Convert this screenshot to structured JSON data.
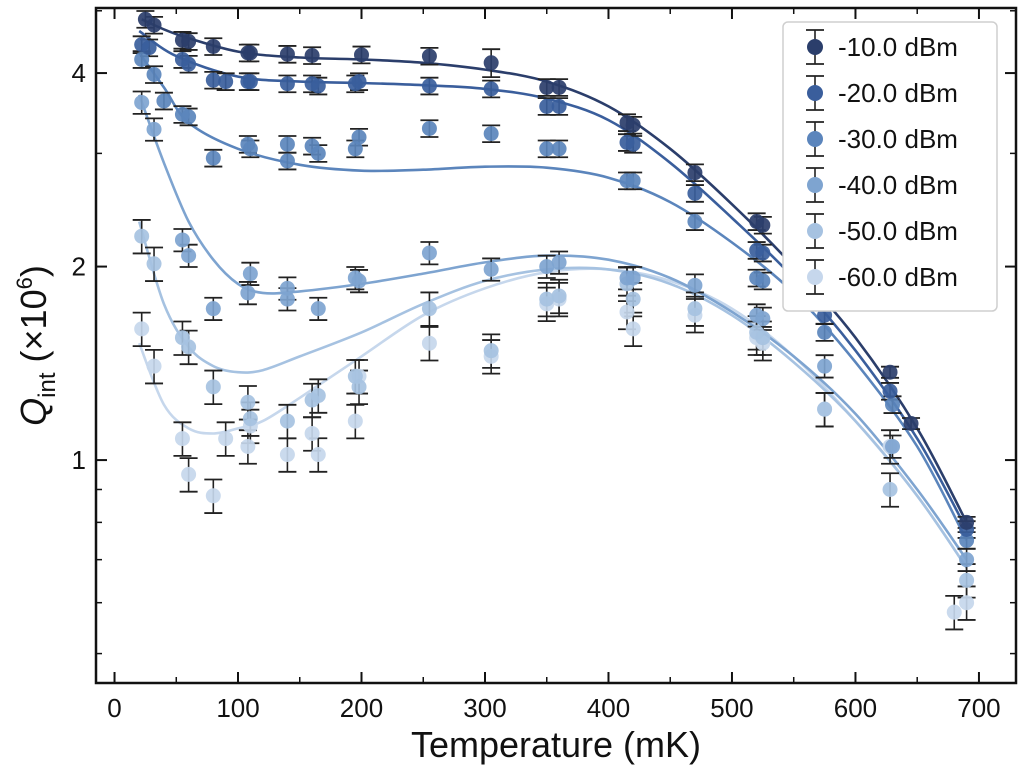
{
  "chart_data": {
    "type": "scatter",
    "xlabel": "Temperature (mK)",
    "ylabel_main": "Q",
    "ylabel_sub": "int",
    "ylabel_unit_pre": " (×10",
    "ylabel_unit_exp": "6",
    "ylabel_unit_post": ")",
    "xlim": [
      -15,
      730
    ],
    "ylim": [
      0.45,
      5.05
    ],
    "x_ticks": [
      0,
      100,
      200,
      300,
      400,
      500,
      600,
      700
    ],
    "x_tick_labels": [
      "0",
      "100",
      "200",
      "300",
      "400",
      "500",
      "600",
      "700"
    ],
    "y_ticks": [
      1,
      2,
      4
    ],
    "y_tick_labels": [
      "1",
      "2",
      "4"
    ],
    "y_scale": "log",
    "grid": false,
    "legend_position": "top-right",
    "series": [
      {
        "name": "-10.0 dBm",
        "color": "#2b3e6b",
        "x": [
          25,
          32,
          55,
          60,
          80,
          108,
          110,
          140,
          160,
          200,
          255,
          305,
          350,
          360,
          415,
          420,
          470,
          520,
          525,
          575,
          628,
          645,
          690
        ],
        "y": [
          4.85,
          4.75,
          4.5,
          4.48,
          4.4,
          4.3,
          4.3,
          4.28,
          4.26,
          4.27,
          4.25,
          4.15,
          3.8,
          3.8,
          3.35,
          3.32,
          2.8,
          2.35,
          2.32,
          1.78,
          1.37,
          1.14,
          0.8
        ],
        "err": [
          0.03,
          0.03,
          0.03,
          0.03,
          0.03,
          0.03,
          0.03,
          0.03,
          0.03,
          0.03,
          0.03,
          0.05,
          0.03,
          0.03,
          0.03,
          0.03,
          0.03,
          0.03,
          0.03,
          0.02,
          0.02,
          0.02,
          0.02
        ],
        "fit_x": [
          22,
          50,
          100,
          150,
          200,
          250,
          300,
          350,
          400,
          450,
          500,
          550,
          600,
          650,
          690
        ],
        "fit_y": [
          4.85,
          4.6,
          4.32,
          4.23,
          4.2,
          4.15,
          4.05,
          3.88,
          3.55,
          3.05,
          2.5,
          2.0,
          1.55,
          1.12,
          0.8
        ]
      },
      {
        "name": "-20.0 dBm",
        "color": "#3a5e9c",
        "x": [
          22,
          28,
          55,
          60,
          80,
          90,
          108,
          110,
          140,
          160,
          165,
          195,
          198,
          255,
          305,
          350,
          360,
          415,
          420,
          470,
          520,
          525,
          575,
          628,
          690
        ],
        "y": [
          4.43,
          4.38,
          4.2,
          4.13,
          3.9,
          3.88,
          3.88,
          3.88,
          3.85,
          3.85,
          3.82,
          3.85,
          3.88,
          3.82,
          3.78,
          3.55,
          3.55,
          3.12,
          3.1,
          2.6,
          2.12,
          2.1,
          1.68,
          1.28,
          0.78
        ],
        "err": [
          0.03,
          0.03,
          0.03,
          0.03,
          0.03,
          0.03,
          0.03,
          0.03,
          0.03,
          0.03,
          0.03,
          0.03,
          0.03,
          0.03,
          0.03,
          0.03,
          0.03,
          0.03,
          0.03,
          0.03,
          0.03,
          0.03,
          0.03,
          0.03,
          0.03
        ],
        "fit_x": [
          20,
          50,
          100,
          150,
          200,
          250,
          300,
          350,
          400,
          450,
          500,
          550,
          600,
          650,
          690
        ],
        "fit_y": [
          4.65,
          4.25,
          3.95,
          3.88,
          3.86,
          3.83,
          3.78,
          3.65,
          3.38,
          2.9,
          2.38,
          1.92,
          1.48,
          1.08,
          0.78
        ]
      },
      {
        "name": "-30.0 dBm",
        "color": "#5b85bc",
        "x": [
          22,
          32,
          40,
          55,
          60,
          80,
          108,
          110,
          140,
          140,
          160,
          165,
          195,
          198,
          255,
          305,
          350,
          360,
          415,
          420,
          470,
          520,
          525,
          575,
          630,
          690
        ],
        "y": [
          4.2,
          3.98,
          3.62,
          3.45,
          3.42,
          2.95,
          3.1,
          3.05,
          3.1,
          2.92,
          3.08,
          3.0,
          3.05,
          3.18,
          3.28,
          3.22,
          3.05,
          3.05,
          2.72,
          2.72,
          2.35,
          1.92,
          1.9,
          1.58,
          1.22,
          0.75
        ],
        "err": [
          0.03,
          0.03,
          0.03,
          0.03,
          0.03,
          0.03,
          0.03,
          0.03,
          0.03,
          0.03,
          0.03,
          0.03,
          0.03,
          0.03,
          0.03,
          0.03,
          0.03,
          0.03,
          0.03,
          0.03,
          0.03,
          0.03,
          0.03,
          0.03,
          0.03,
          0.03
        ],
        "fit_x": [
          20,
          40,
          60,
          100,
          150,
          200,
          250,
          300,
          350,
          400,
          450,
          500,
          550,
          600,
          650,
          690
        ],
        "fit_y": [
          4.3,
          3.8,
          3.35,
          3.05,
          2.88,
          2.82,
          2.83,
          2.86,
          2.85,
          2.75,
          2.52,
          2.18,
          1.82,
          1.42,
          1.05,
          0.75
        ]
      },
      {
        "name": "-40.0 dBm",
        "color": "#7ea4d0",
        "x": [
          22,
          32,
          55,
          60,
          80,
          108,
          110,
          140,
          140,
          165,
          195,
          198,
          255,
          305,
          350,
          360,
          415,
          420,
          470,
          520,
          525,
          575,
          630,
          690
        ],
        "y": [
          3.6,
          3.27,
          2.2,
          2.08,
          1.72,
          1.82,
          1.95,
          1.85,
          1.78,
          1.72,
          1.92,
          1.9,
          2.1,
          1.98,
          2.0,
          2.03,
          1.92,
          1.92,
          1.87,
          1.68,
          1.66,
          1.4,
          1.05,
          0.7
        ],
        "err": [
          0.04,
          0.04,
          0.04,
          0.04,
          0.04,
          0.04,
          0.04,
          0.04,
          0.04,
          0.04,
          0.04,
          0.04,
          0.04,
          0.04,
          0.04,
          0.04,
          0.04,
          0.04,
          0.04,
          0.04,
          0.04,
          0.04,
          0.04,
          0.04
        ],
        "fit_x": [
          20,
          40,
          60,
          80,
          100,
          120,
          150,
          200,
          250,
          300,
          350,
          400,
          450,
          500,
          550,
          600,
          650,
          690
        ],
        "fit_y": [
          3.7,
          2.9,
          2.35,
          2.05,
          1.88,
          1.82,
          1.83,
          1.88,
          1.95,
          2.03,
          2.08,
          2.05,
          1.92,
          1.7,
          1.45,
          1.18,
          0.9,
          0.7
        ]
      },
      {
        "name": "-50.0 dBm",
        "color": "#a6c2e1",
        "x": [
          22,
          32,
          55,
          60,
          80,
          108,
          110,
          140,
          160,
          165,
          195,
          198,
          255,
          305,
          350,
          360,
          415,
          420,
          470,
          520,
          525,
          575,
          628,
          690
        ],
        "y": [
          2.23,
          2.02,
          1.55,
          1.5,
          1.3,
          1.23,
          1.16,
          1.15,
          1.24,
          1.26,
          1.35,
          1.3,
          1.72,
          1.48,
          1.78,
          1.8,
          1.88,
          1.78,
          1.72,
          1.58,
          1.55,
          1.2,
          0.9,
          0.65
        ],
        "err": [
          0.06,
          0.06,
          0.06,
          0.06,
          0.06,
          0.06,
          0.06,
          0.06,
          0.06,
          0.06,
          0.06,
          0.06,
          0.06,
          0.06,
          0.06,
          0.06,
          0.06,
          0.06,
          0.06,
          0.06,
          0.06,
          0.06,
          0.06,
          0.06
        ],
        "fit_x": [
          20,
          40,
          60,
          80,
          100,
          120,
          150,
          200,
          250,
          300,
          350,
          400,
          450,
          500,
          550,
          600,
          650,
          690
        ],
        "fit_y": [
          2.35,
          1.75,
          1.5,
          1.4,
          1.37,
          1.38,
          1.45,
          1.58,
          1.75,
          1.9,
          1.98,
          1.98,
          1.88,
          1.68,
          1.42,
          1.15,
          0.88,
          0.68
        ]
      },
      {
        "name": "-60.0 dBm",
        "color": "#c6d7ec",
        "x": [
          22,
          32,
          55,
          60,
          80,
          90,
          108,
          110,
          140,
          160,
          165,
          195,
          198,
          255,
          305,
          350,
          360,
          415,
          420,
          470,
          520,
          525,
          575,
          628,
          680,
          690
        ],
        "y": [
          1.6,
          1.4,
          1.08,
          0.95,
          0.88,
          1.08,
          1.05,
          1.13,
          1.02,
          1.1,
          1.02,
          1.15,
          1.35,
          1.52,
          1.45,
          1.75,
          1.78,
          1.7,
          1.6,
          1.68,
          1.55,
          1.52,
          1.2,
          1.05,
          0.58,
          0.6
        ],
        "err": [
          0.06,
          0.06,
          0.06,
          0.06,
          0.06,
          0.06,
          0.06,
          0.06,
          0.06,
          0.06,
          0.06,
          0.06,
          0.06,
          0.06,
          0.06,
          0.06,
          0.06,
          0.06,
          0.06,
          0.06,
          0.06,
          0.06,
          0.06,
          0.06,
          0.06,
          0.06
        ],
        "fit_x": [
          20,
          40,
          60,
          80,
          100,
          120,
          150,
          200,
          250,
          300,
          350,
          400,
          450,
          500,
          550,
          600,
          650,
          690
        ],
        "fit_y": [
          1.52,
          1.22,
          1.12,
          1.1,
          1.12,
          1.15,
          1.25,
          1.45,
          1.68,
          1.85,
          1.96,
          1.98,
          1.9,
          1.72,
          1.45,
          1.15,
          0.88,
          0.68
        ]
      }
    ]
  }
}
